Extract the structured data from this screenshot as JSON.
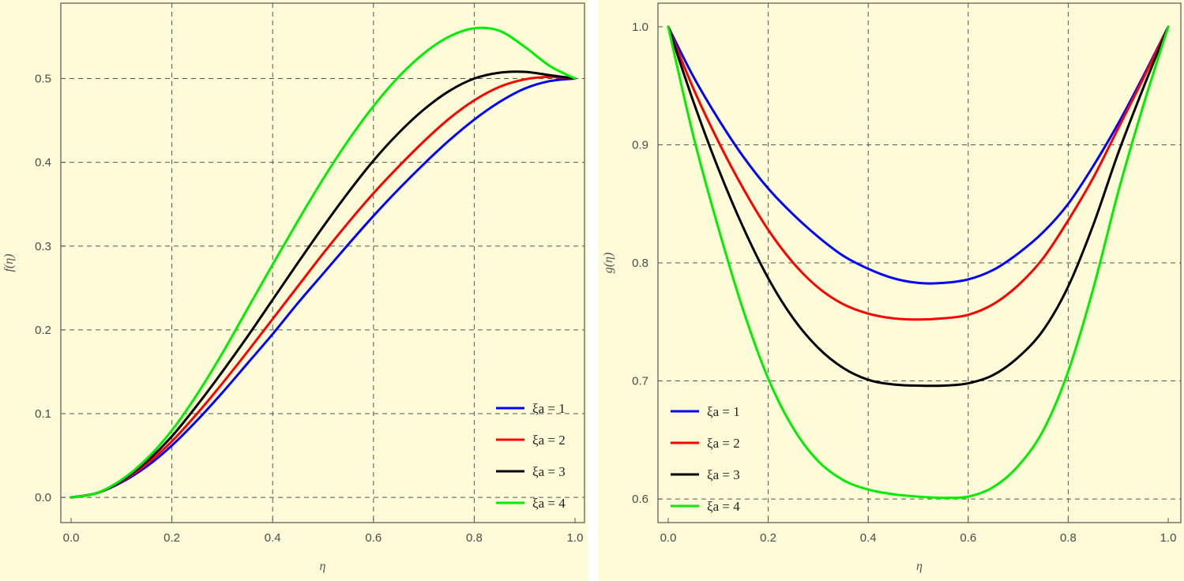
{
  "chart_data": [
    {
      "type": "line",
      "xlabel": "η",
      "ylabel": "f(η)",
      "xlim": [
        0.0,
        1.0
      ],
      "ylim": [
        -0.03,
        0.59
      ],
      "xticks": [
        "0.0",
        "0.2",
        "0.4",
        "0.6",
        "0.8",
        "1.0"
      ],
      "yticks": [
        "0.0",
        "0.1",
        "0.2",
        "0.3",
        "0.4",
        "0.5"
      ],
      "grid": true,
      "legend_position": "bottom-right",
      "series": [
        {
          "name": "ξa = 1",
          "color": "#0000ff",
          "x": [
            0,
            0.05,
            0.1,
            0.15,
            0.2,
            0.25,
            0.3,
            0.35,
            0.4,
            0.45,
            0.5,
            0.55,
            0.6,
            0.65,
            0.7,
            0.75,
            0.8,
            0.85,
            0.9,
            0.95,
            1.0
          ],
          "y": [
            0,
            0.005,
            0.018,
            0.037,
            0.062,
            0.092,
            0.125,
            0.16,
            0.195,
            0.232,
            0.267,
            0.302,
            0.336,
            0.368,
            0.398,
            0.426,
            0.451,
            0.472,
            0.488,
            0.497,
            0.5
          ]
        },
        {
          "name": "ξa = 2",
          "color": "#ff0000",
          "x": [
            0,
            0.05,
            0.1,
            0.15,
            0.2,
            0.25,
            0.3,
            0.35,
            0.4,
            0.45,
            0.5,
            0.55,
            0.6,
            0.65,
            0.7,
            0.75,
            0.8,
            0.85,
            0.9,
            0.95,
            1.0
          ],
          "y": [
            0,
            0.005,
            0.019,
            0.04,
            0.067,
            0.1,
            0.136,
            0.174,
            0.213,
            0.252,
            0.291,
            0.328,
            0.363,
            0.395,
            0.425,
            0.452,
            0.474,
            0.49,
            0.499,
            0.502,
            0.5
          ]
        },
        {
          "name": "ξa = 3",
          "color": "#000000",
          "x": [
            0,
            0.05,
            0.1,
            0.15,
            0.2,
            0.25,
            0.3,
            0.35,
            0.4,
            0.45,
            0.5,
            0.55,
            0.6,
            0.65,
            0.7,
            0.75,
            0.8,
            0.85,
            0.9,
            0.95,
            1.0
          ],
          "y": [
            0,
            0.005,
            0.02,
            0.043,
            0.073,
            0.11,
            0.15,
            0.192,
            0.236,
            0.28,
            0.323,
            0.364,
            0.402,
            0.435,
            0.463,
            0.485,
            0.5,
            0.507,
            0.508,
            0.504,
            0.5
          ]
        },
        {
          "name": "ξa = 4",
          "color": "#00ee00",
          "x": [
            0,
            0.05,
            0.1,
            0.15,
            0.2,
            0.25,
            0.3,
            0.35,
            0.4,
            0.45,
            0.5,
            0.55,
            0.6,
            0.65,
            0.7,
            0.75,
            0.8,
            0.85,
            0.9,
            0.95,
            1.0
          ],
          "y": [
            0,
            0.005,
            0.021,
            0.046,
            0.08,
            0.123,
            0.172,
            0.225,
            0.278,
            0.33,
            0.38,
            0.426,
            0.467,
            0.502,
            0.53,
            0.55,
            0.56,
            0.557,
            0.538,
            0.515,
            0.5
          ]
        }
      ]
    },
    {
      "type": "line",
      "xlabel": "η",
      "ylabel": "g(η)",
      "xlim": [
        0.0,
        1.0
      ],
      "ylim": [
        0.58,
        1.02
      ],
      "xticks": [
        "0.0",
        "0.2",
        "0.4",
        "0.6",
        "0.8",
        "1.0"
      ],
      "yticks": [
        "0.6",
        "0.7",
        "0.8",
        "0.9",
        "1.0"
      ],
      "grid": true,
      "legend_position": "bottom-left",
      "series": [
        {
          "name": "ξa = 1",
          "color": "#0000ff",
          "x": [
            0,
            0.05,
            0.1,
            0.15,
            0.2,
            0.25,
            0.3,
            0.35,
            0.4,
            0.45,
            0.5,
            0.55,
            0.6,
            0.65,
            0.7,
            0.75,
            0.8,
            0.85,
            0.9,
            0.95,
            1.0
          ],
          "y": [
            1.0,
            0.958,
            0.922,
            0.89,
            0.863,
            0.841,
            0.822,
            0.806,
            0.795,
            0.787,
            0.783,
            0.783,
            0.786,
            0.794,
            0.808,
            0.826,
            0.85,
            0.882,
            0.918,
            0.958,
            1.0
          ]
        },
        {
          "name": "ξa = 2",
          "color": "#ff0000",
          "x": [
            0,
            0.05,
            0.1,
            0.15,
            0.2,
            0.25,
            0.3,
            0.35,
            0.4,
            0.45,
            0.5,
            0.55,
            0.6,
            0.65,
            0.7,
            0.75,
            0.8,
            0.85,
            0.9,
            0.95,
            1.0
          ],
          "y": [
            1.0,
            0.948,
            0.903,
            0.863,
            0.828,
            0.8,
            0.779,
            0.765,
            0.757,
            0.753,
            0.752,
            0.753,
            0.756,
            0.765,
            0.781,
            0.804,
            0.836,
            0.872,
            0.914,
            0.956,
            1.0
          ]
        },
        {
          "name": "ξa = 3",
          "color": "#000000",
          "x": [
            0,
            0.05,
            0.1,
            0.15,
            0.2,
            0.25,
            0.3,
            0.35,
            0.4,
            0.45,
            0.5,
            0.55,
            0.6,
            0.65,
            0.7,
            0.75,
            0.8,
            0.85,
            0.9,
            0.95,
            1.0
          ],
          "y": [
            1.0,
            0.937,
            0.88,
            0.83,
            0.787,
            0.753,
            0.728,
            0.711,
            0.701,
            0.697,
            0.696,
            0.696,
            0.698,
            0.705,
            0.72,
            0.743,
            0.78,
            0.832,
            0.893,
            0.948,
            1.0
          ]
        },
        {
          "name": "ξa = 4",
          "color": "#00ee00",
          "x": [
            0,
            0.05,
            0.1,
            0.15,
            0.2,
            0.25,
            0.3,
            0.35,
            0.4,
            0.45,
            0.5,
            0.55,
            0.6,
            0.65,
            0.7,
            0.75,
            0.8,
            0.85,
            0.9,
            0.95,
            1.0
          ],
          "y": [
            1.0,
            0.908,
            0.83,
            0.76,
            0.702,
            0.66,
            0.632,
            0.616,
            0.608,
            0.604,
            0.602,
            0.601,
            0.602,
            0.61,
            0.628,
            0.658,
            0.708,
            0.778,
            0.86,
            0.933,
            1.0
          ]
        }
      ]
    }
  ]
}
